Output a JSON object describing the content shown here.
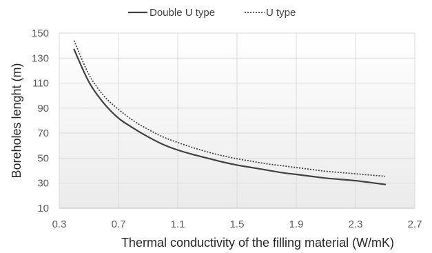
{
  "chart_data": {
    "type": "line",
    "title": "",
    "xlabel": "Thermal conductivity of the filling material (W/mK)",
    "ylabel": "Boreholes lenght (m)",
    "xlim": [
      0.3,
      2.7
    ],
    "ylim": [
      10,
      150
    ],
    "x_ticks": [
      0.3,
      0.7,
      1.1,
      1.5,
      1.9,
      2.3,
      2.7
    ],
    "y_ticks": [
      10,
      30,
      50,
      70,
      90,
      110,
      130,
      150
    ],
    "x_tick_labels": [
      "0.3",
      "0.7",
      "1.1",
      "1.5",
      "1.9",
      "2.3",
      "2.7"
    ],
    "y_tick_labels": [
      "10",
      "30",
      "50",
      "70",
      "90",
      "110",
      "130",
      "150"
    ],
    "grid": true,
    "legend_position": "top-center",
    "series": [
      {
        "name": "Double U type",
        "line_style": "solid",
        "color": "#404040",
        "x": [
          0.4,
          0.5,
          0.6,
          0.7,
          0.8,
          0.9,
          1.0,
          1.1,
          1.2,
          1.3,
          1.4,
          1.5,
          1.6,
          1.7,
          1.8,
          1.9,
          2.0,
          2.1,
          2.2,
          2.3,
          2.4,
          2.5
        ],
        "y": [
          137,
          111,
          94,
          82,
          74,
          67,
          61,
          56.5,
          53,
          50,
          47,
          44.5,
          42.5,
          40.5,
          38.5,
          37,
          35.5,
          34,
          33,
          32,
          30.5,
          29
        ]
      },
      {
        "name": "U type",
        "line_style": "dotted",
        "color": "#404040",
        "x": [
          0.4,
          0.5,
          0.6,
          0.7,
          0.8,
          0.9,
          1.0,
          1.1,
          1.2,
          1.3,
          1.4,
          1.5,
          1.6,
          1.7,
          1.8,
          1.9,
          2.0,
          2.1,
          2.2,
          2.3,
          2.4,
          2.5
        ],
        "y": [
          144,
          117,
          100,
          89,
          80,
          73,
          67,
          62.5,
          58.5,
          55,
          52,
          49.5,
          47.5,
          45.5,
          44,
          42.5,
          41,
          39.5,
          38.5,
          37.5,
          36.5,
          35.5
        ]
      }
    ]
  }
}
